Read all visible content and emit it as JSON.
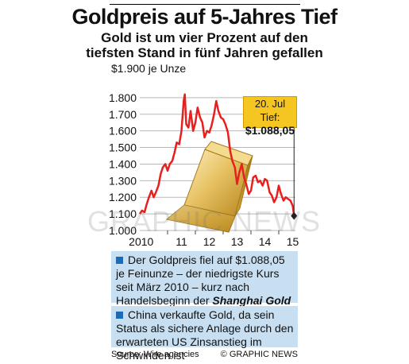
{
  "title": "Goldpreis auf 5-Jahres Tief",
  "subtitle_line1": "Gold ist um vier Prozent auf den",
  "subtitle_line2": "tiefsten Stand in fünf Jahren gefallen",
  "unit_label": "$1.900 je Unze",
  "callout": {
    "line1": "20. Jul Tief:",
    "line2": "$1.088,05"
  },
  "watermark": "GRAPHIC NEWS",
  "info1": {
    "text_before": "Der Goldpreis fiel auf $1.088,05 je Feinunze – der niedrigste Kurs seit März 2010 – kurz nach Handelsbeginn der ",
    "text_em": "Shanghai Gold Börse"
  },
  "info2": {
    "text": "China verkaufte Gold, da sein Status als sichere Anlage durch den erwarteten US Zinsanstieg im Schwinden ist"
  },
  "footer": {
    "source": "Source: Wire agencies",
    "credit": "© GRAPHIC NEWS"
  },
  "colors": {
    "line": "#e8201d",
    "grid": "#b8b8b8",
    "info_bg": "#c7dff1",
    "bullet": "#1c6bb5",
    "callout_bg": "#f5c522",
    "gold_light": "#f8e6a8",
    "gold_dark": "#c99a2e"
  },
  "chart_data": {
    "type": "line",
    "xlabel": "",
    "ylabel": "$1.900 je Unze",
    "ylim": [
      1000,
      1900
    ],
    "yticks": [
      1000,
      1100,
      1200,
      1300,
      1400,
      1500,
      1600,
      1700,
      1800
    ],
    "ytick_labels": [
      "1.000",
      "1.100",
      "1.200",
      "1.300",
      "1.400",
      "1.500",
      "1.600",
      "1.700",
      "1.800"
    ],
    "xlim": [
      2010.0,
      2015.6
    ],
    "xticks": [
      2010,
      2011,
      2012,
      2013,
      2014,
      2015
    ],
    "xtick_labels": [
      "2010",
      "11",
      "12",
      "13",
      "14",
      "15"
    ],
    "grid": "horizontal",
    "series": [
      {
        "x": [
          2010.0,
          2010.08,
          2010.17,
          2010.25,
          2010.33,
          2010.42,
          2010.5,
          2010.58,
          2010.67,
          2010.75,
          2010.83,
          2010.92,
          2011.0,
          2011.08,
          2011.17,
          2011.25,
          2011.33,
          2011.42,
          2011.5,
          2011.58,
          2011.62,
          2011.67,
          2011.75,
          2011.83,
          2011.92,
          2012.0,
          2012.08,
          2012.17,
          2012.25,
          2012.33,
          2012.42,
          2012.5,
          2012.58,
          2012.67,
          2012.75,
          2012.83,
          2012.92,
          2013.0,
          2013.08,
          2013.17,
          2013.25,
          2013.33,
          2013.42,
          2013.5,
          2013.58,
          2013.67,
          2013.75,
          2013.83,
          2013.92,
          2014.0,
          2014.08,
          2014.17,
          2014.25,
          2014.33,
          2014.42,
          2014.5,
          2014.58,
          2014.67,
          2014.75,
          2014.83,
          2014.92,
          2015.0,
          2015.08,
          2015.17,
          2015.25,
          2015.33,
          2015.42,
          2015.5,
          2015.55
        ],
        "y": [
          1100,
          1120,
          1110,
          1160,
          1200,
          1240,
          1200,
          1230,
          1270,
          1340,
          1380,
          1400,
          1360,
          1400,
          1420,
          1470,
          1530,
          1520,
          1600,
          1780,
          1820,
          1640,
          1620,
          1720,
          1600,
          1650,
          1740,
          1680,
          1650,
          1560,
          1600,
          1590,
          1630,
          1700,
          1780,
          1720,
          1680,
          1670,
          1640,
          1590,
          1480,
          1420,
          1380,
          1280,
          1350,
          1400,
          1320,
          1280,
          1220,
          1240,
          1320,
          1330,
          1290,
          1300,
          1270,
          1310,
          1300,
          1230,
          1210,
          1170,
          1200,
          1270,
          1220,
          1180,
          1200,
          1190,
          1180,
          1150,
          1088
        ]
      }
    ],
    "annotation": {
      "x": 2015.55,
      "y": 1088.05,
      "text": "20. Jul Tief: $1.088,05"
    }
  }
}
